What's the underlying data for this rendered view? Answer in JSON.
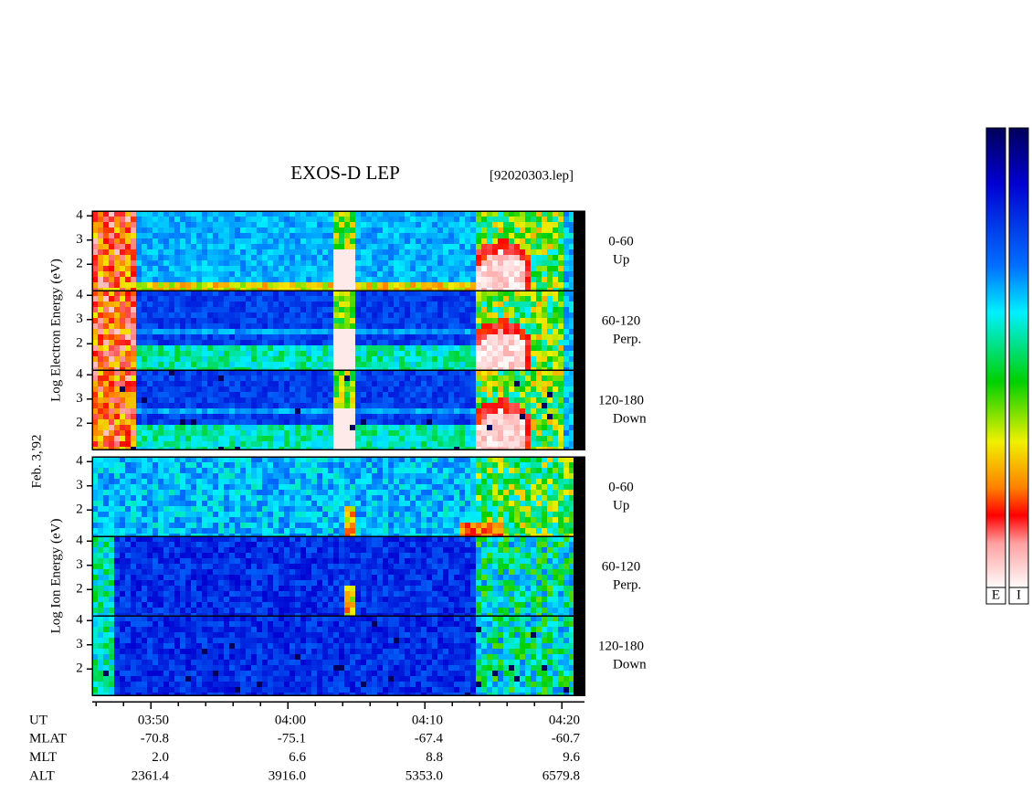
{
  "chart_data": {
    "type": "spectrogram",
    "title": "EXOS-D LEP",
    "file_label": "[92020303.lep]",
    "date_label": "Feb. 3,'92",
    "ylim": [
      0.9,
      4.2
    ],
    "yticks": [
      2,
      3,
      4
    ],
    "groups": [
      {
        "ylabel": "Log  Electron  Energy (eV)",
        "panels": [
          {
            "range": "0-60",
            "direction": "Up"
          },
          {
            "range": "60-120",
            "direction": "Perp."
          },
          {
            "range": "120-180",
            "direction": "Down"
          }
        ]
      },
      {
        "ylabel": "Log  Ion  Energy (eV)",
        "panels": [
          {
            "range": "0-60",
            "direction": "Up"
          },
          {
            "range": "60-120",
            "direction": "Perp."
          },
          {
            "range": "120-180",
            "direction": "Down"
          }
        ]
      }
    ],
    "x_axis": {
      "label": "UT",
      "ticks": [
        "03:50",
        "04:00",
        "04:10",
        "04:20"
      ]
    },
    "ephemeris": [
      {
        "name": "MLAT",
        "values": [
          "-70.8",
          "-75.1",
          "-67.4",
          "-60.7"
        ]
      },
      {
        "name": "MLT",
        "values": [
          "2.0",
          "6.6",
          "8.8",
          "9.6"
        ]
      },
      {
        "name": "ALT",
        "values": [
          "2361.4",
          "3916.0",
          "5353.0",
          "6579.8"
        ]
      }
    ],
    "colorbars": [
      "E",
      "I"
    ]
  }
}
